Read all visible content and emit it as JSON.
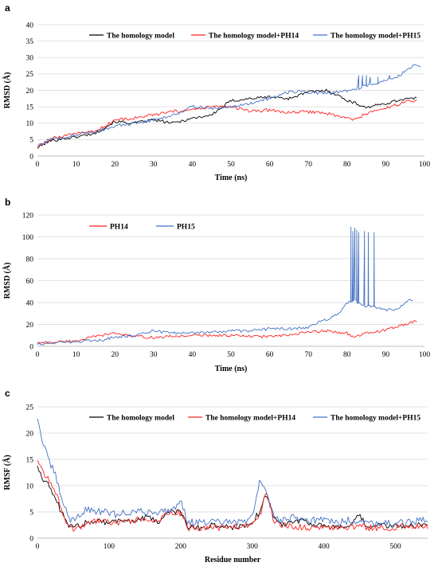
{
  "chart_data": [
    {
      "type": "line",
      "panel": "a",
      "xlabel": "Time (ns)",
      "ylabel": "RMSD (Å)",
      "xlim": [
        0,
        100
      ],
      "ylim": [
        0,
        40
      ],
      "xticks": [
        0,
        10,
        20,
        30,
        40,
        50,
        60,
        70,
        80,
        90,
        100
      ],
      "yticks": [
        0,
        5,
        10,
        15,
        20,
        25,
        30,
        35,
        40
      ],
      "grid": true,
      "legend": "top",
      "series": [
        {
          "name": "The homology model",
          "color": "#000000",
          "noise": 0.45,
          "x": [
            0,
            3,
            6,
            10,
            15,
            20,
            25,
            30,
            35,
            40,
            45,
            50,
            55,
            60,
            65,
            70,
            75,
            80,
            85,
            90,
            95,
            98
          ],
          "y": [
            2.5,
            4.5,
            5.2,
            5.8,
            7,
            10.5,
            10,
            11,
            10,
            11.5,
            12.5,
            16.8,
            17.5,
            18,
            17.5,
            19.5,
            20,
            17,
            14.8,
            16,
            17.5,
            17.5
          ]
        },
        {
          "name": "The homology model+PH14",
          "color": "#ff2020",
          "noise": 0.5,
          "x": [
            0,
            3,
            6,
            10,
            15,
            20,
            25,
            30,
            35,
            40,
            45,
            50,
            55,
            60,
            65,
            70,
            75,
            80,
            82,
            85,
            90,
            95,
            98
          ],
          "y": [
            2.5,
            5,
            6,
            7,
            7.5,
            11,
            11.5,
            12.5,
            13.5,
            14,
            15,
            15,
            13.5,
            14,
            13.2,
            13.5,
            13,
            11.5,
            11,
            13,
            14.5,
            16.5,
            17
          ]
        },
        {
          "name": "The homology model+PH15",
          "color": "#4472c4",
          "noise": 0.5,
          "x": [
            0,
            3,
            6,
            10,
            15,
            20,
            25,
            30,
            35,
            40,
            45,
            50,
            55,
            60,
            65,
            70,
            75,
            80,
            83,
            85,
            90,
            93,
            95,
            97,
            99
          ],
          "y": [
            3,
            5,
            5.5,
            6.5,
            7.5,
            9,
            10,
            11,
            12.5,
            15,
            14.5,
            15,
            16,
            17.5,
            19.5,
            19.5,
            19,
            20,
            20.5,
            21.5,
            23,
            24,
            26,
            27.5,
            27
          ],
          "spikes": [
            [
              83,
              24.5
            ],
            [
              84,
              24.5
            ],
            [
              85,
              24.5
            ],
            [
              86,
              24
            ],
            [
              88,
              24
            ],
            [
              91,
              24.5
            ]
          ]
        }
      ]
    },
    {
      "type": "line",
      "panel": "b",
      "xlabel": "Time (ns)",
      "ylabel": "RMSD (Å)",
      "xlim": [
        0,
        100
      ],
      "ylim": [
        0,
        120
      ],
      "xticks": [
        0,
        10,
        20,
        30,
        40,
        50,
        60,
        70,
        80,
        90,
        100
      ],
      "yticks": [
        0,
        20,
        40,
        60,
        80,
        100,
        120
      ],
      "grid": true,
      "legend": "top-left",
      "series": [
        {
          "name": "PH14",
          "color": "#ff2020",
          "noise": 1.2,
          "x": [
            0,
            5,
            10,
            15,
            20,
            25,
            30,
            35,
            40,
            45,
            50,
            55,
            60,
            65,
            70,
            75,
            80,
            82,
            85,
            90,
            95,
            98
          ],
          "y": [
            3,
            4,
            5,
            9,
            12,
            9,
            8,
            9,
            10,
            10,
            10,
            9,
            9,
            10,
            13,
            14,
            12,
            8,
            12,
            15,
            20,
            23
          ]
        },
        {
          "name": "PH15",
          "color": "#4472c4",
          "noise": 1.3,
          "x": [
            0,
            5,
            10,
            15,
            20,
            25,
            30,
            35,
            40,
            45,
            50,
            55,
            60,
            65,
            70,
            72,
            75,
            78,
            80,
            82,
            84,
            86,
            88,
            90,
            93,
            96,
            97
          ],
          "y": [
            2,
            3.5,
            4,
            5,
            8,
            10,
            14,
            12,
            12,
            13,
            14,
            14,
            16,
            16,
            17,
            21,
            25,
            30,
            40,
            42,
            38,
            36,
            35,
            33,
            34,
            42,
            43
          ],
          "spikes": [
            [
              81,
              109
            ],
            [
              81.5,
              105
            ],
            [
              82,
              108
            ],
            [
              82.5,
              106
            ],
            [
              83,
              104
            ],
            [
              84.5,
              105
            ],
            [
              85.5,
              104
            ],
            [
              87,
              104
            ]
          ]
        }
      ]
    },
    {
      "type": "line",
      "panel": "c",
      "xlabel": "Residue number",
      "ylabel": "RMSF (Å)",
      "xlim": [
        0,
        545
      ],
      "ylim": [
        0,
        25
      ],
      "xticks": [
        0,
        100,
        200,
        300,
        400,
        500
      ],
      "yticks": [
        0,
        5,
        10,
        15,
        20,
        25
      ],
      "grid": true,
      "legend": "top",
      "series": [
        {
          "name": "The homology model",
          "color": "#000000",
          "noise": 0.6,
          "x": [
            0,
            5,
            10,
            20,
            30,
            40,
            50,
            60,
            70,
            80,
            100,
            120,
            140,
            150,
            170,
            180,
            200,
            210,
            230,
            250,
            270,
            290,
            300,
            310,
            320,
            330,
            340,
            350,
            370,
            390,
            400,
            420,
            440,
            450,
            460,
            480,
            500,
            520,
            545
          ],
          "y": [
            14,
            12,
            11,
            9,
            6,
            3,
            2,
            2.5,
            3,
            3.5,
            3,
            3.5,
            3.2,
            4,
            3,
            5,
            5,
            2,
            2,
            2.5,
            2,
            2.5,
            3,
            5,
            8.5,
            4,
            2.5,
            3,
            3.5,
            2.5,
            2.2,
            2,
            2.5,
            4.5,
            2,
            2.5,
            2.2,
            2.5,
            2.5
          ]
        },
        {
          "name": "The homology model+PH14",
          "color": "#ff2020",
          "noise": 0.6,
          "x": [
            0,
            5,
            10,
            20,
            30,
            40,
            50,
            60,
            70,
            80,
            100,
            120,
            140,
            150,
            170,
            180,
            200,
            210,
            230,
            250,
            270,
            290,
            300,
            310,
            320,
            330,
            340,
            350,
            370,
            390,
            400,
            420,
            440,
            450,
            460,
            480,
            500,
            520,
            545
          ],
          "y": [
            15,
            13.5,
            12,
            10.5,
            7,
            3,
            1.8,
            2,
            3,
            3.2,
            3,
            3,
            3.5,
            3.5,
            3.5,
            5,
            4.8,
            2,
            2,
            2,
            2,
            2.5,
            2.5,
            4,
            9,
            3.5,
            2.5,
            2.5,
            2,
            2,
            2,
            2,
            2,
            2.5,
            2,
            2,
            2,
            2.5,
            2
          ]
        },
        {
          "name": "The homology model+PH15",
          "color": "#4472c4",
          "noise": 0.7,
          "x": [
            0,
            3,
            8,
            15,
            25,
            35,
            45,
            55,
            70,
            90,
            110,
            130,
            150,
            170,
            190,
            200,
            210,
            230,
            250,
            270,
            290,
            300,
            310,
            320,
            330,
            340,
            360,
            380,
            400,
            420,
            440,
            460,
            480,
            500,
            520,
            545
          ],
          "y": [
            23,
            21,
            18,
            15,
            12,
            7,
            3.5,
            4,
            5.5,
            5,
            4.5,
            5,
            5,
            5,
            5.5,
            7.5,
            3,
            3,
            3,
            3,
            3,
            4,
            11,
            8.5,
            4,
            3.5,
            4,
            3.5,
            3.5,
            3,
            3.5,
            3,
            3,
            2.8,
            3,
            3.5
          ]
        }
      ]
    }
  ]
}
